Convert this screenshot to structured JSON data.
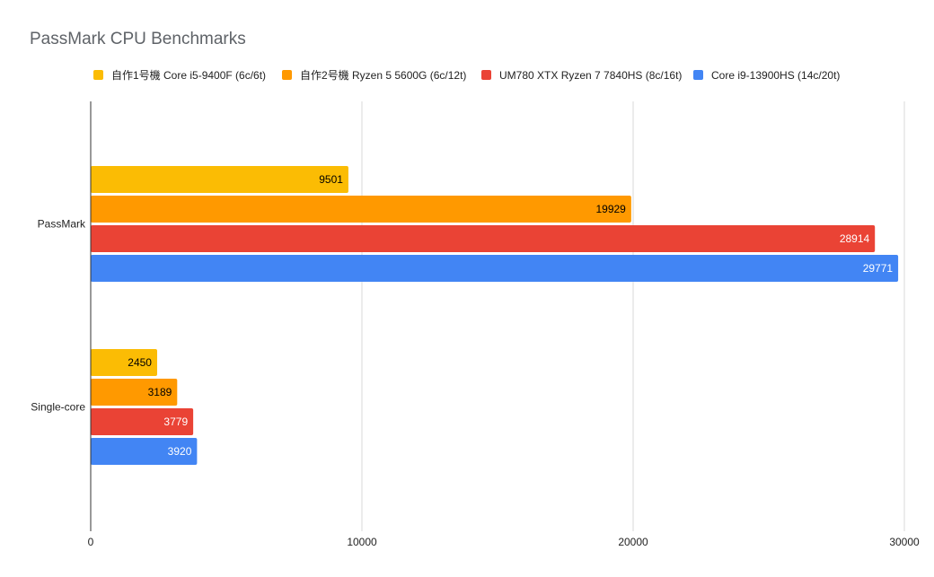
{
  "chart_data": {
    "type": "bar",
    "orientation": "horizontal",
    "title": "PassMark CPU Benchmarks",
    "categories": [
      "PassMark",
      "Single-core"
    ],
    "series": [
      {
        "name": "自作1号機 Core i5-9400F (6c/6t)",
        "color": "#fbbc04",
        "label_color": "#000000",
        "values": [
          9501,
          2450
        ]
      },
      {
        "name": "自作2号機 Ryzen 5 5600G (6c/12t)",
        "color": "#ff9900",
        "label_color": "#000000",
        "values": [
          19929,
          3189
        ]
      },
      {
        "name": "UM780 XTX Ryzen 7 7840HS (8c/16t)",
        "color": "#ea4335",
        "label_color": "#ffffff",
        "values": [
          28914,
          3779
        ]
      },
      {
        "name": "Core i9-13900HS (14c/20t)",
        "color": "#4285f4",
        "label_color": "#ffffff",
        "values": [
          29771,
          3920
        ]
      }
    ],
    "xlim": [
      0,
      30000
    ],
    "xticks": [
      0,
      10000,
      20000,
      30000
    ],
    "xlabel": "",
    "ylabel": "",
    "grid": true,
    "legend": "top"
  }
}
